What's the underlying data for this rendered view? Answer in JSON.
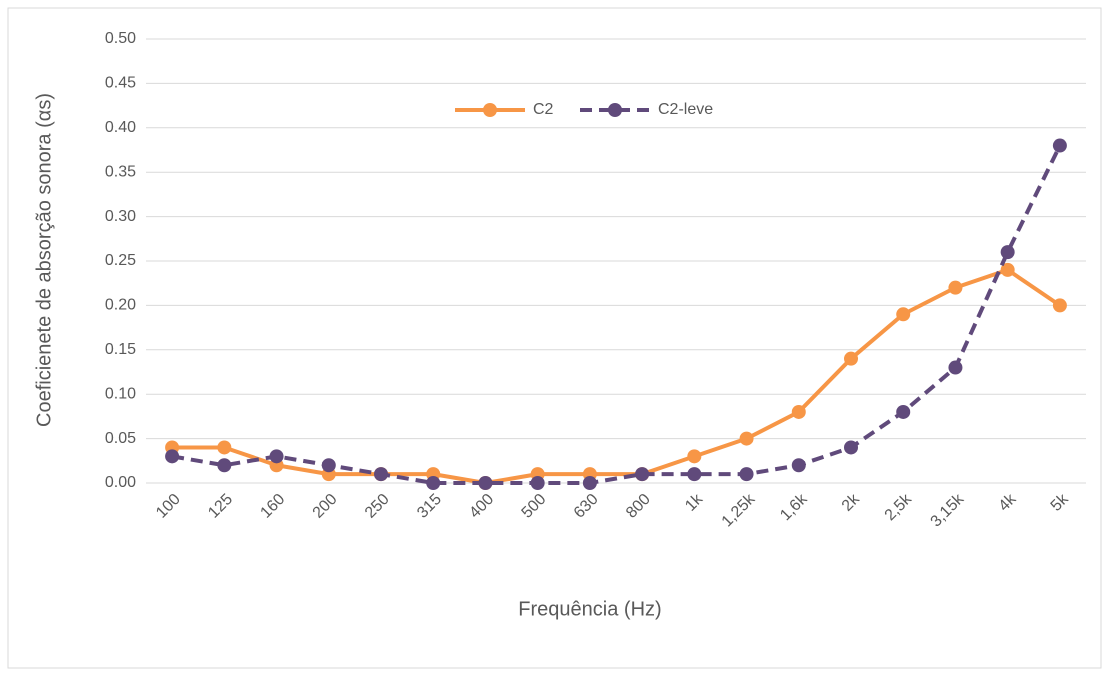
{
  "chart_data": {
    "type": "line",
    "x_label": "Frequência (Hz)",
    "y_label": "Coeficienete de absorção sonora (αs)",
    "categories": [
      "100",
      "125",
      "160",
      "200",
      "250",
      "315",
      "400",
      "500",
      "630",
      "800",
      "1k",
      "1,25k",
      "1,6k",
      "2k",
      "2,5k",
      "3,15k",
      "4k",
      "5k"
    ],
    "series": [
      {
        "name": "C2",
        "color": "#f79646",
        "dashed": false,
        "values": [
          0.04,
          0.04,
          0.02,
          0.01,
          0.01,
          0.01,
          0.0,
          0.01,
          0.01,
          0.01,
          0.03,
          0.05,
          0.08,
          0.14,
          0.19,
          0.22,
          0.24,
          0.2
        ]
      },
      {
        "name": "C2-leve",
        "color": "#604a7b",
        "dashed": true,
        "values": [
          0.03,
          0.02,
          0.03,
          0.02,
          0.01,
          0.0,
          0.0,
          0.0,
          0.0,
          0.01,
          0.01,
          0.01,
          0.02,
          0.04,
          0.08,
          0.13,
          0.26,
          0.38
        ]
      }
    ],
    "ylim": [
      0,
      0.5
    ],
    "yticks": [
      {
        "value": 0,
        "label": "0.00"
      },
      {
        "value": 0.05,
        "label": "0.05"
      },
      {
        "value": 0.1,
        "label": "0.10"
      },
      {
        "value": 0.15,
        "label": "0.15"
      },
      {
        "value": 0.2,
        "label": "0.20"
      },
      {
        "value": 0.25,
        "label": "0.25"
      },
      {
        "value": 0.3,
        "label": "0.30"
      },
      {
        "value": 0.35,
        "label": "0.35"
      },
      {
        "value": 0.4,
        "label": "0.40"
      },
      {
        "value": 0.45,
        "label": "0.45"
      },
      {
        "value": 0.5,
        "label": "0.50"
      }
    ],
    "grid": true,
    "legend": "top"
  }
}
